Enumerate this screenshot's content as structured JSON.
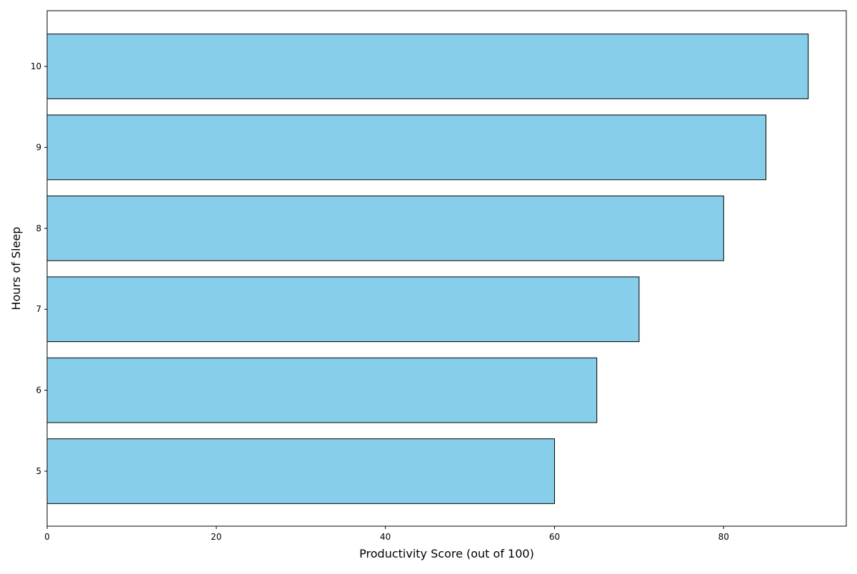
{
  "chart_data": {
    "type": "bar",
    "orientation": "horizontal",
    "title": "",
    "xlabel": "Productivity Score (out of 100)",
    "ylabel": "Hours of Sleep",
    "categories": [
      "5",
      "6",
      "7",
      "8",
      "9",
      "10"
    ],
    "values": [
      60,
      65,
      70,
      80,
      85,
      90
    ],
    "xlim": [
      0,
      94.5
    ],
    "xticks": [
      0,
      20,
      40,
      60,
      80
    ],
    "bar_color": "#87CEEB",
    "bar_edge_color": "#000000",
    "grid": false,
    "legend": null
  }
}
